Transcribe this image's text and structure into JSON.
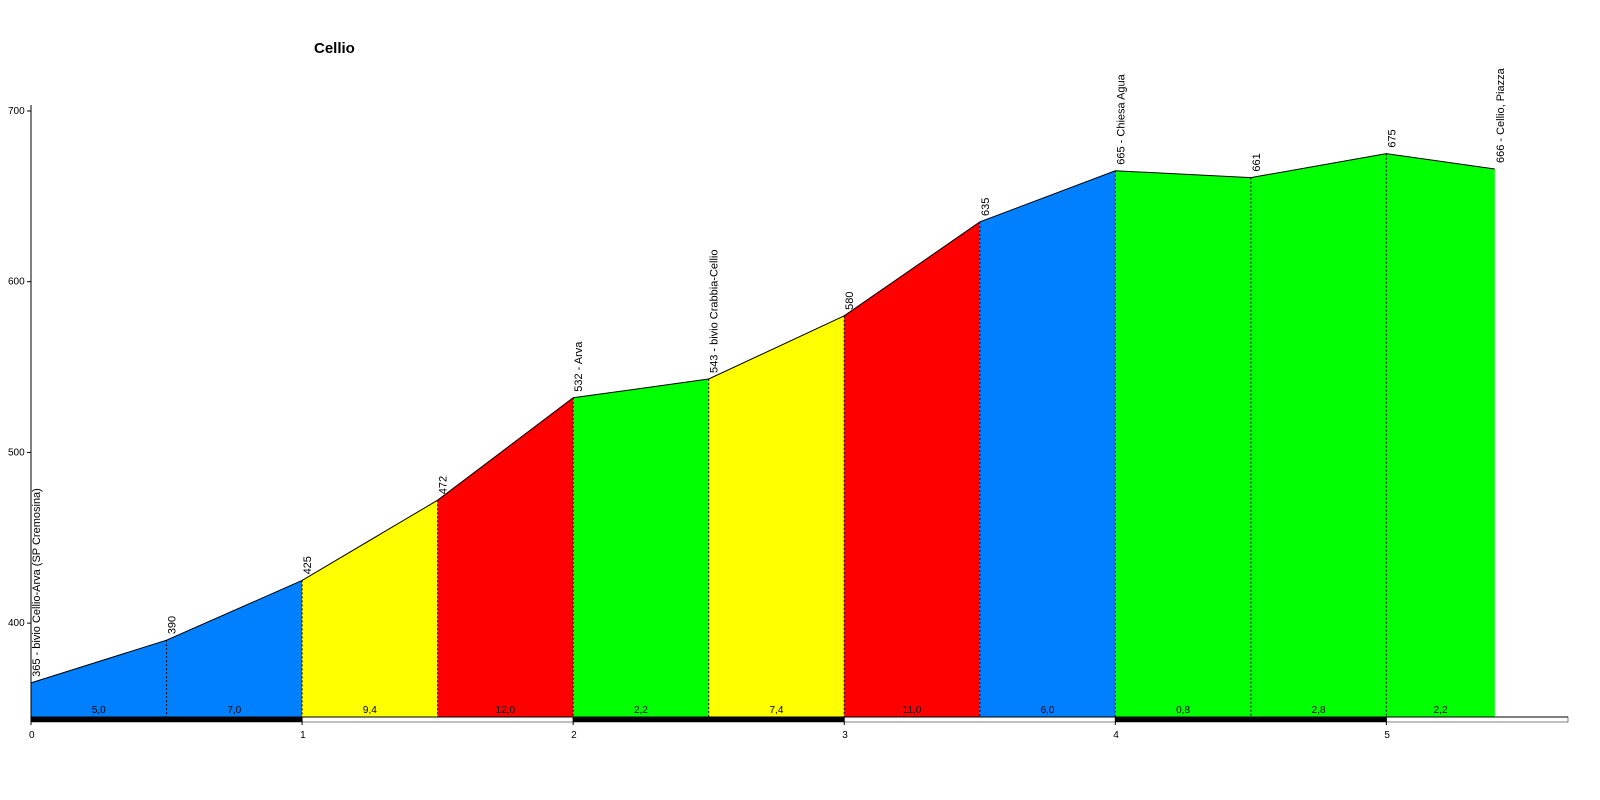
{
  "chart_data": {
    "type": "elevation-profile",
    "title": "Cellio",
    "x": [
      0,
      0.5,
      1,
      1.5,
      2,
      2.5,
      3,
      3.5,
      4,
      4.5,
      5,
      5.4
    ],
    "values": [
      365,
      390,
      425,
      472,
      532,
      543,
      580,
      635,
      665,
      661,
      675,
      666
    ],
    "value_labels": [
      "365 - bivio Cellio-Arva (SP Cremosina)",
      "390",
      "425",
      "472",
      "532 - Arva",
      "543 - bivio Crabbia-Cellio",
      "580",
      "635",
      "665 - Chiesa Agua",
      "661",
      "675",
      "666 - Cellio, Piazza"
    ],
    "gradients": [
      {
        "value": 5.0,
        "label": "5,0"
      },
      {
        "value": 7.0,
        "label": "7,0"
      },
      {
        "value": 9.4,
        "label": "9,4"
      },
      {
        "value": 12.0,
        "label": "12,0"
      },
      {
        "value": 2.2,
        "label": "2,2"
      },
      {
        "value": 7.4,
        "label": "7,4"
      },
      {
        "value": 11.0,
        "label": "11,0"
      },
      {
        "value": 6.0,
        "label": "6,0"
      },
      {
        "value": 0.8,
        "label": "0,8"
      },
      {
        "value": 2.8,
        "label": "2,8"
      },
      {
        "value": 2.2,
        "label": "2,2"
      }
    ],
    "segment_colors": [
      "#0080ff",
      "#0080ff",
      "#ffff00",
      "#ff0000",
      "#00ff00",
      "#ffff00",
      "#ff0000",
      "#0080ff",
      "#00ff00",
      "#00ff00",
      "#00ff00"
    ],
    "xlim": [
      0,
      5.67
    ],
    "xticks": [
      0,
      1,
      2,
      3,
      4,
      5
    ],
    "ylim": [
      345,
      700
    ],
    "yticks": [
      400,
      500,
      600,
      700
    ]
  }
}
